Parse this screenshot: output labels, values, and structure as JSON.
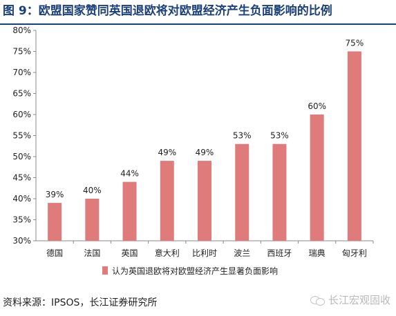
{
  "figure": {
    "title": "图  9：欧盟国家赞同英国退欧将对欧盟经济产生负面影响的比例",
    "source": "资料来源：IPSOS，长江证券研究所",
    "watermark": "长江宏观固收",
    "watermark_icon": "wechat-icon"
  },
  "chart_data": {
    "type": "bar",
    "categories": [
      "德国",
      "法国",
      "英国",
      "意大利",
      "比利时",
      "波兰",
      "西班牙",
      "瑞典",
      "匈牙利"
    ],
    "values": [
      39,
      40,
      44,
      49,
      49,
      53,
      53,
      60,
      75
    ],
    "value_labels": [
      "39%",
      "40%",
      "44%",
      "49%",
      "49%",
      "53%",
      "53%",
      "60%",
      "75%"
    ],
    "ylim": [
      30,
      80
    ],
    "yticks": [
      30,
      35,
      40,
      45,
      50,
      55,
      60,
      65,
      70,
      75,
      80
    ],
    "ytick_labels": [
      "30%",
      "35%",
      "40%",
      "45%",
      "50%",
      "55%",
      "60%",
      "65%",
      "70%",
      "75%",
      "80%"
    ],
    "series_name": "认为英国退欧将对欧盟经济产生显著负面影响",
    "bar_color": "#e07b7b",
    "grid": false,
    "legend_position": "bottom"
  }
}
